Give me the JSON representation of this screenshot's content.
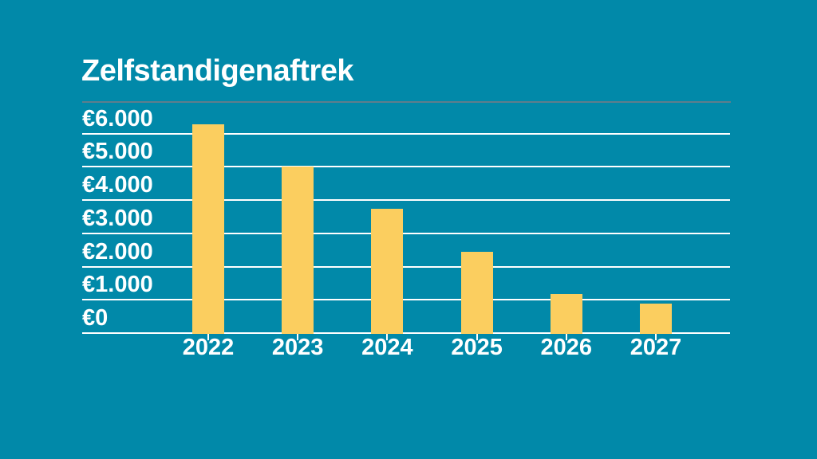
{
  "header": {
    "title": "Zelfstandigenaftrek"
  },
  "chart_data": {
    "type": "bar",
    "title": "Zelfstandigenaftrek",
    "categories": [
      "2022",
      "2023",
      "2024",
      "2025",
      "2026",
      "2027"
    ],
    "values": [
      6310,
      5030,
      3750,
      2470,
      1200,
      900
    ],
    "value_prefix": "€",
    "xlabel": "",
    "ylabel": "",
    "y_axis": {
      "tick_labels": [
        "€6.000",
        "€5.000",
        "€4.000",
        "€3.000",
        "€2.000",
        "€1.000",
        "€0"
      ],
      "tick_values": [
        6000,
        5000,
        4000,
        3000,
        2000,
        1000,
        0
      ],
      "range": [
        0,
        6450
      ],
      "label_position": "above-gridline"
    },
    "grid": true,
    "legend": false,
    "colors": {
      "background": "#0189A9",
      "bar": "#FBCE5F",
      "gridline": "#FFFFFF",
      "text": "#FFFFFF",
      "title_rule": "#5E7E8C"
    }
  }
}
